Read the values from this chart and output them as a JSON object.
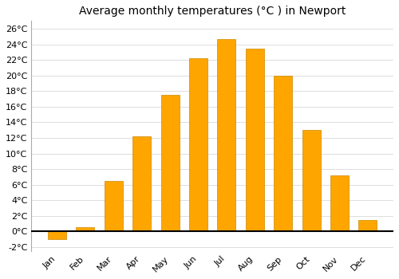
{
  "title": "Average monthly temperatures (°C ) in Newport",
  "months": [
    "Jan",
    "Feb",
    "Mar",
    "Apr",
    "May",
    "Jun",
    "Jul",
    "Aug",
    "Sep",
    "Oct",
    "Nov",
    "Dec"
  ],
  "values": [
    -1.0,
    0.5,
    6.5,
    12.2,
    17.5,
    22.2,
    24.7,
    23.5,
    20.0,
    13.0,
    7.2,
    1.5
  ],
  "bar_color": "#FFA500",
  "bar_edge_color": "#CC8800",
  "background_color": "#ffffff",
  "grid_color": "#dddddd",
  "ylim": [
    -2.5,
    27
  ],
  "yticks": [
    -2,
    0,
    2,
    4,
    6,
    8,
    10,
    12,
    14,
    16,
    18,
    20,
    22,
    24,
    26
  ],
  "ytick_labels": [
    "-2°C",
    "0°C",
    "2°C",
    "4°C",
    "6°C",
    "8°C",
    "10°C",
    "12°C",
    "14°C",
    "16°C",
    "18°C",
    "20°C",
    "22°C",
    "24°C",
    "26°C"
  ],
  "title_fontsize": 10,
  "tick_fontsize": 8,
  "font_family": "DejaVu Sans"
}
